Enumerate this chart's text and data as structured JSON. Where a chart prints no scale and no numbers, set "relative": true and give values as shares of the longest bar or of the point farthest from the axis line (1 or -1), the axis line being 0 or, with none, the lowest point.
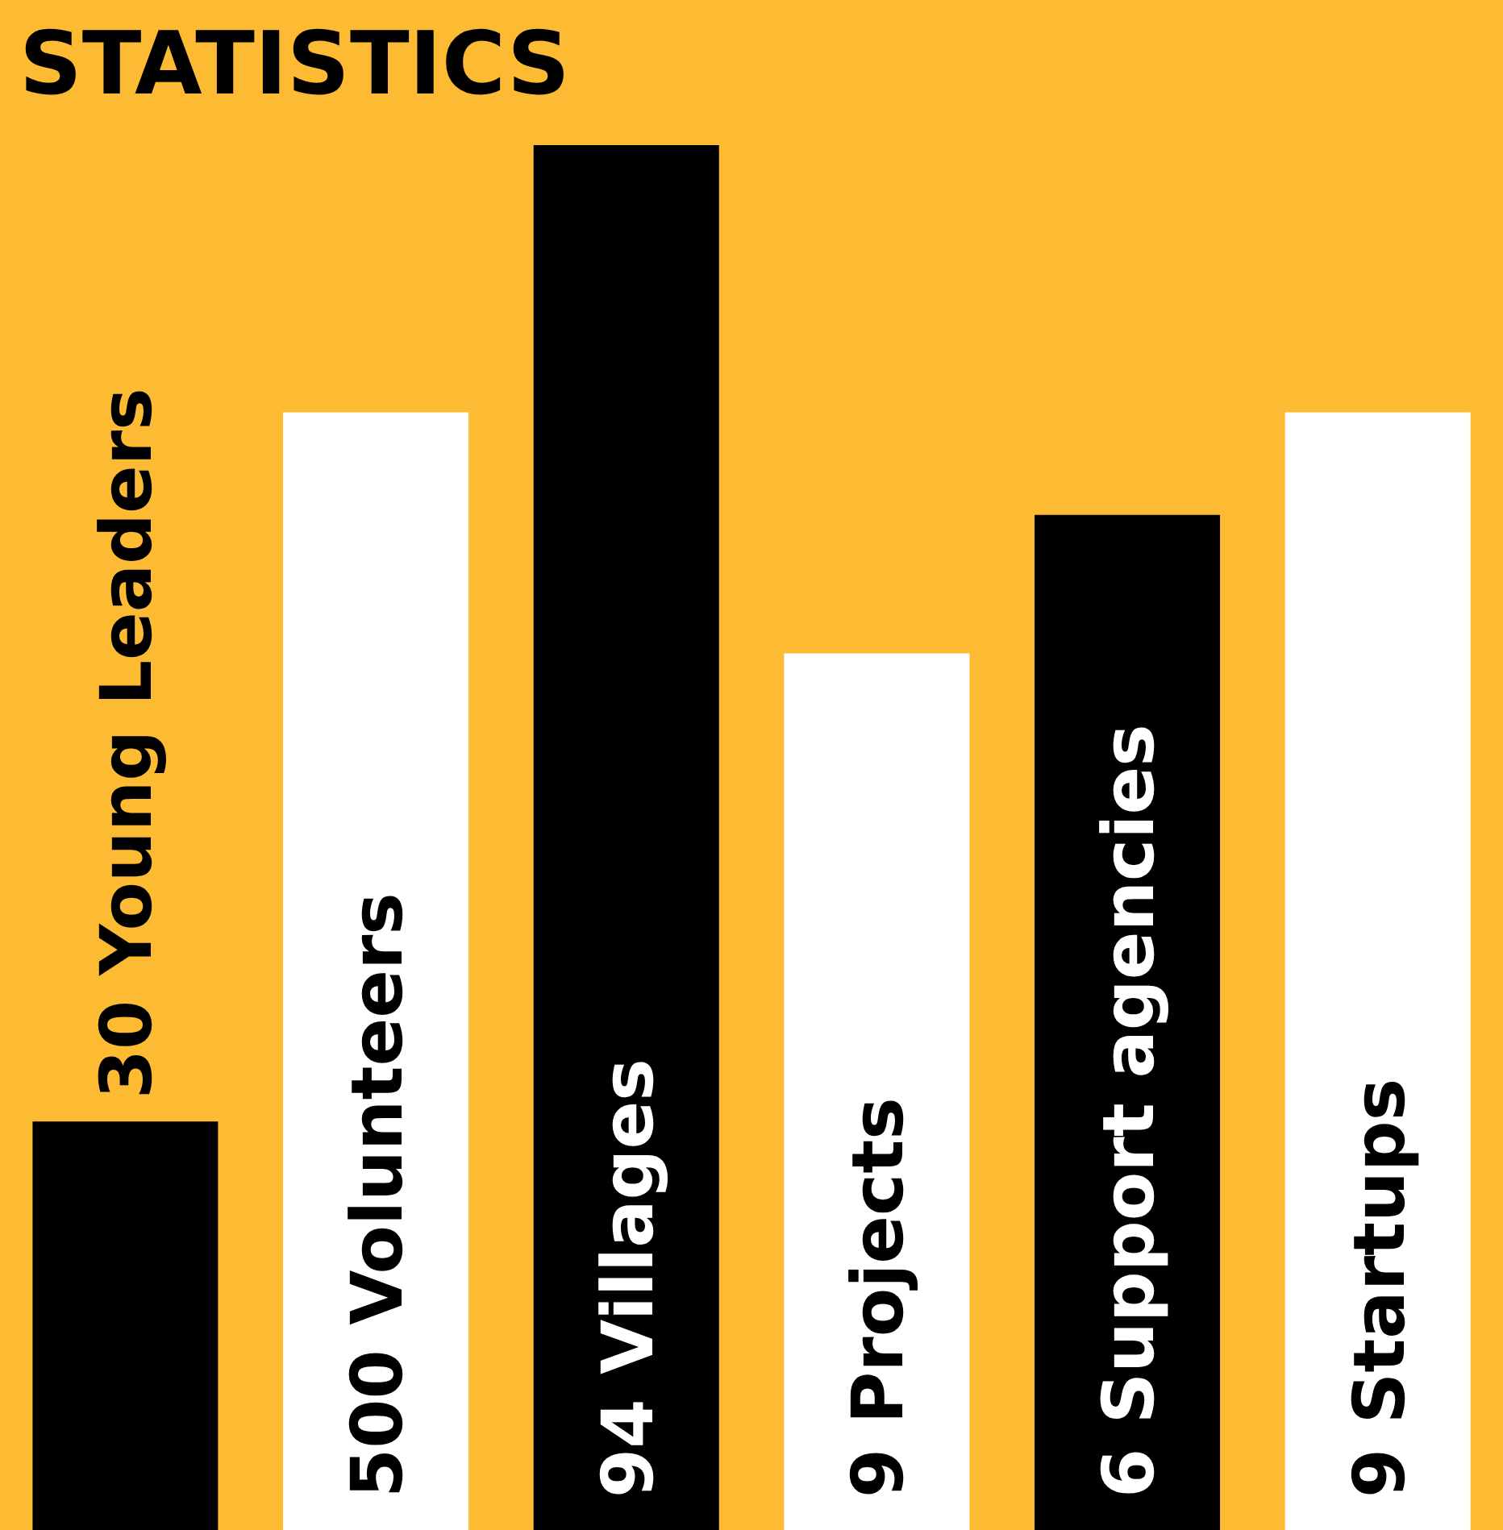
{
  "chart_data": {
    "type": "bar",
    "title": "STATISTICS",
    "relative": true,
    "categories": [
      "30 Young Leaders",
      "500 Volunteers",
      "94 Villages",
      "9 Projects",
      "6 Support agencies",
      "9 Startups"
    ],
    "values": [
      0.295,
      0.807,
      1,
      0.633,
      0.733,
      0.807
    ],
    "colors": [
      "#000000",
      "#ffffff",
      "#000000",
      "#ffffff",
      "#000000",
      "#ffffff"
    ]
  }
}
